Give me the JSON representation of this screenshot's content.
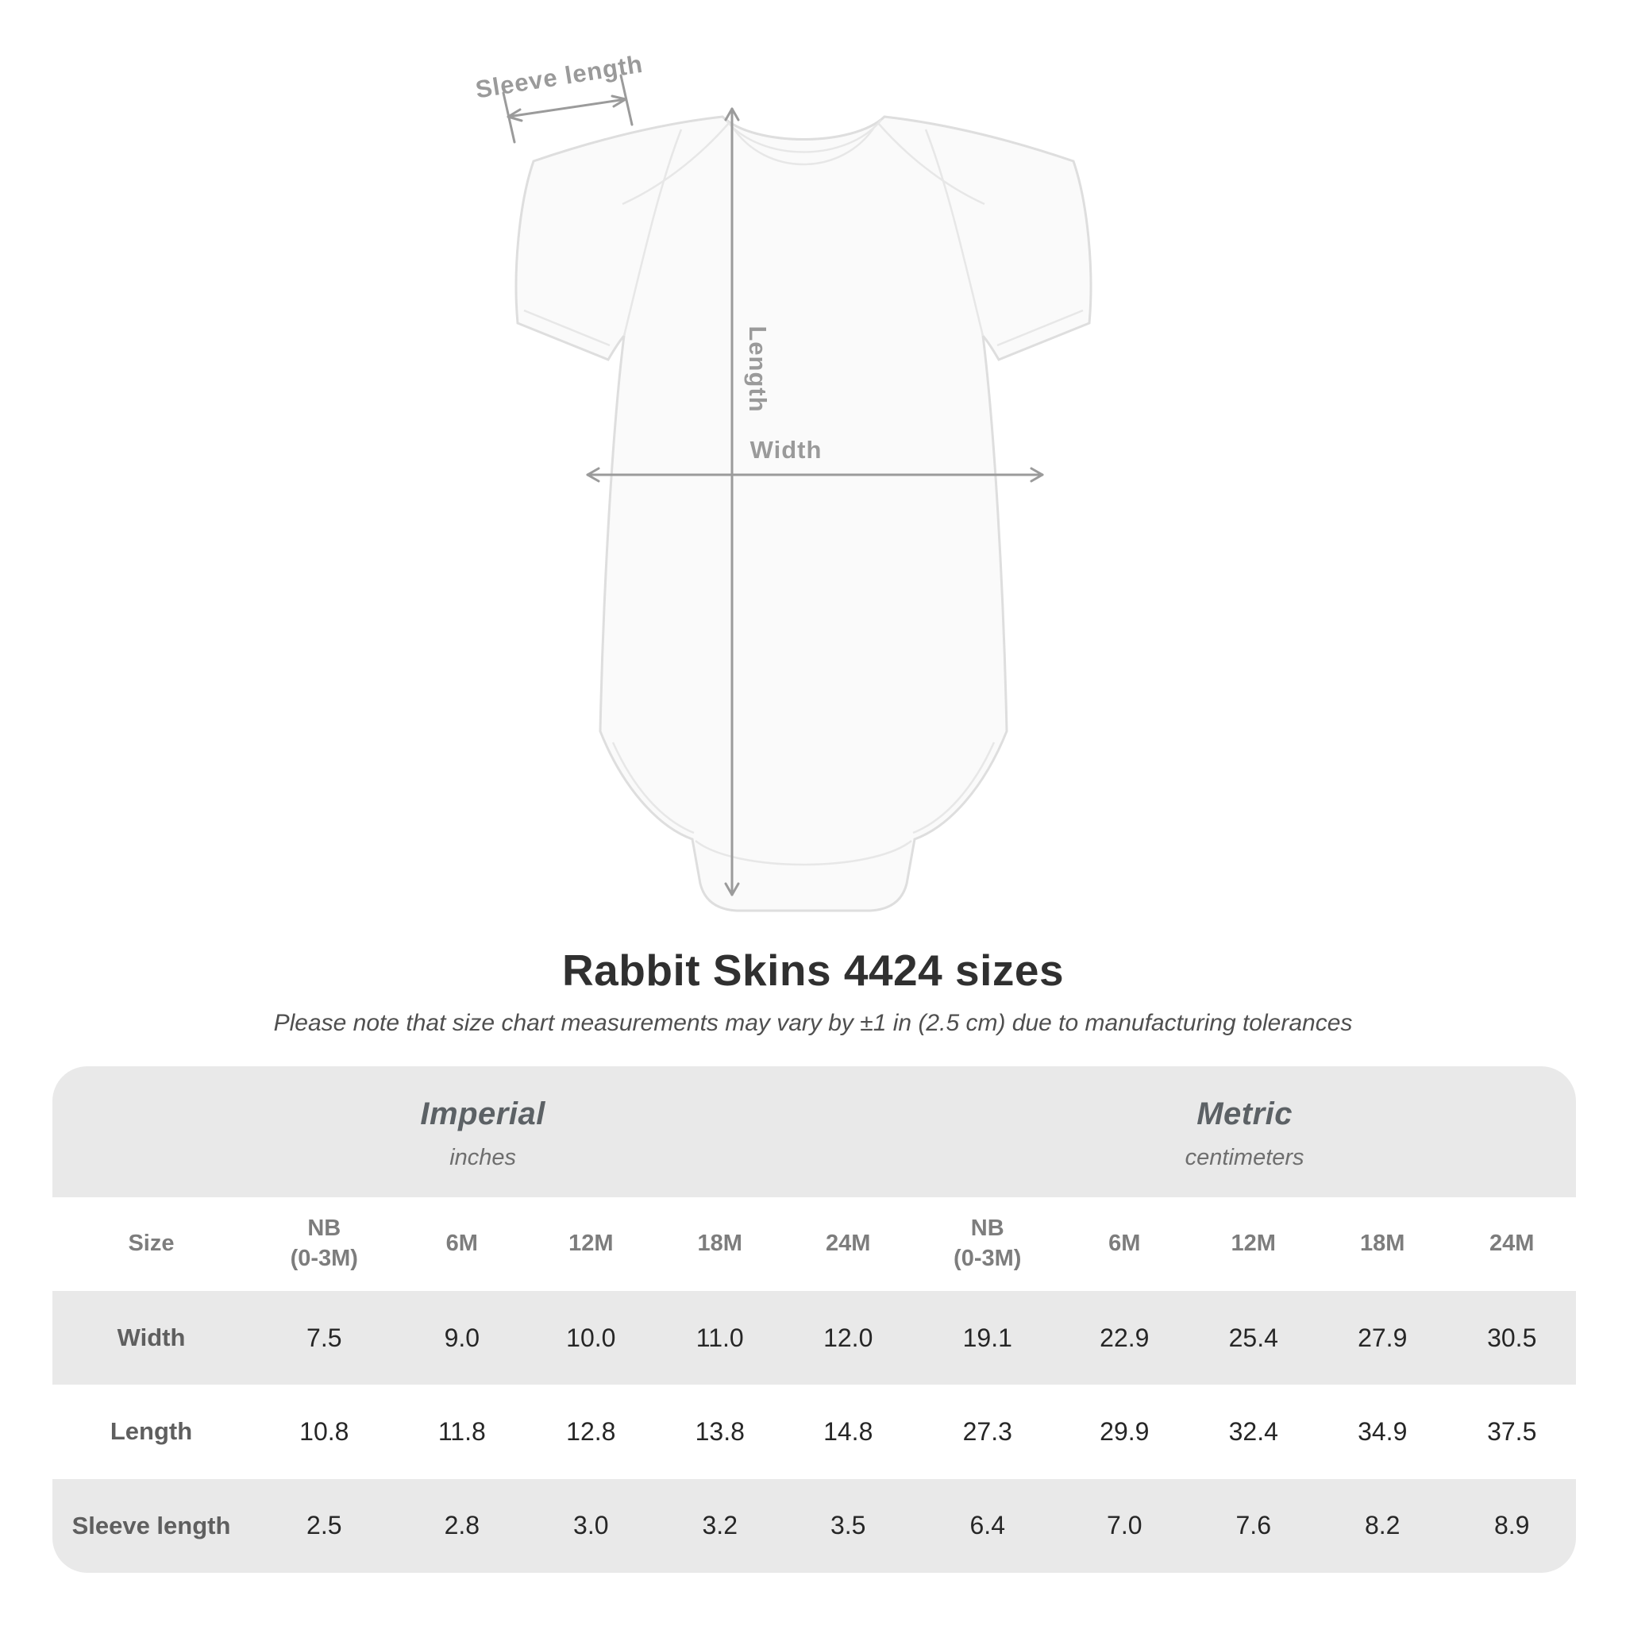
{
  "illustration": {
    "labels": {
      "sleeve": "Sleeve length",
      "length": "Length",
      "width": "Width"
    },
    "arrow_color": "#9b9b9b",
    "garment_color": "#fafafa"
  },
  "title": "Rabbit Skins 4424 sizes",
  "subtitle": "Please note that size chart measurements may vary by ±1 in (2.5 cm) due to manufacturing tolerances",
  "table": {
    "band_color": "#e9e9e9",
    "sections": [
      {
        "label": "Imperial",
        "unit": "inches"
      },
      {
        "label": "Metric",
        "unit": "centimeters"
      }
    ],
    "size_header": "Size",
    "columns": [
      "NB\n(0-3M)",
      "6M",
      "12M",
      "18M",
      "24M",
      "NB\n(0-3M)",
      "6M",
      "12M",
      "18M",
      "24M"
    ],
    "rows": [
      {
        "label": "Width",
        "values": [
          "7.5",
          "9.0",
          "10.0",
          "11.0",
          "12.0",
          "19.1",
          "22.9",
          "25.4",
          "27.9",
          "30.5"
        ]
      },
      {
        "label": "Length",
        "values": [
          "10.8",
          "11.8",
          "12.8",
          "13.8",
          "14.8",
          "27.3",
          "29.9",
          "32.4",
          "34.9",
          "37.5"
        ]
      },
      {
        "label": "Sleeve length",
        "values": [
          "2.5",
          "2.8",
          "3.0",
          "3.2",
          "3.5",
          "6.4",
          "7.0",
          "7.6",
          "8.2",
          "8.9"
        ]
      }
    ]
  },
  "chart_data": {
    "type": "table",
    "title": "Rabbit Skins 4424 sizes",
    "note": "Please note that size chart measurements may vary by ±1 in (2.5 cm) due to manufacturing tolerances",
    "sections": [
      "Imperial (inches)",
      "Metric (centimeters)"
    ],
    "columns": [
      "Size",
      "NB (0-3M)",
      "6M",
      "12M",
      "18M",
      "24M",
      "NB (0-3M)",
      "6M",
      "12M",
      "18M",
      "24M"
    ],
    "rows": [
      [
        "Width",
        7.5,
        9.0,
        10.0,
        11.0,
        12.0,
        19.1,
        22.9,
        25.4,
        27.9,
        30.5
      ],
      [
        "Length",
        10.8,
        11.8,
        12.8,
        13.8,
        14.8,
        27.3,
        29.9,
        32.4,
        34.9,
        37.5
      ],
      [
        "Sleeve length",
        2.5,
        2.8,
        3.0,
        3.2,
        3.5,
        6.4,
        7.0,
        7.6,
        8.2,
        8.9
      ]
    ]
  }
}
